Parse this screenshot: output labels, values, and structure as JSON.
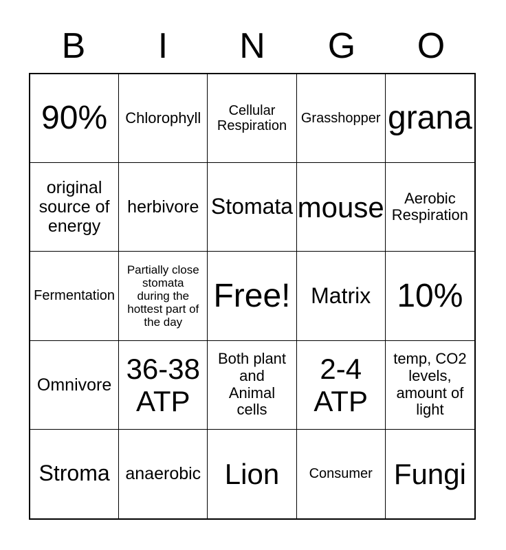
{
  "header": {
    "letters": [
      "B",
      "I",
      "N",
      "G",
      "O"
    ]
  },
  "board": {
    "rows": [
      {
        "cells": [
          {
            "text": "90%",
            "tier": "xl"
          },
          {
            "text": "Chlorophyll",
            "tier": "sm"
          },
          {
            "text": "Cellular\nRespiration",
            "tier": "xs"
          },
          {
            "text": "Grasshopper",
            "tier": "xs"
          },
          {
            "text": "grana",
            "tier": "xl"
          }
        ]
      },
      {
        "cells": [
          {
            "text": "original\nsource of\nenergy",
            "tier": "base"
          },
          {
            "text": "herbivore",
            "tier": "base"
          },
          {
            "text": "Stomata",
            "tier": "md"
          },
          {
            "text": "mouse",
            "tier": "lg"
          },
          {
            "text": "Aerobic\nRespiration",
            "tier": "sm"
          }
        ]
      },
      {
        "cells": [
          {
            "text": "Fermentation",
            "tier": "xs"
          },
          {
            "text": "Partially close\nstomata\nduring the\nhottest part of\nthe day",
            "tier": "xxs"
          },
          {
            "text": "Free!",
            "tier": "xl"
          },
          {
            "text": "Matrix",
            "tier": "md"
          },
          {
            "text": "10%",
            "tier": "xl"
          }
        ]
      },
      {
        "cells": [
          {
            "text": "Omnivore",
            "tier": "base"
          },
          {
            "text": "36-38\nATP",
            "tier": "lg"
          },
          {
            "text": "Both plant\nand\nAnimal\ncells",
            "tier": "sm"
          },
          {
            "text": "2-4\nATP",
            "tier": "lg"
          },
          {
            "text": "temp, CO2\nlevels,\namount of\nlight",
            "tier": "sm"
          }
        ]
      },
      {
        "cells": [
          {
            "text": "Stroma",
            "tier": "md"
          },
          {
            "text": "anaerobic",
            "tier": "base"
          },
          {
            "text": "Lion",
            "tier": "lg"
          },
          {
            "text": "Consumer",
            "tier": "xs"
          },
          {
            "text": "Fungi",
            "tier": "lg"
          }
        ]
      }
    ]
  },
  "colors": {
    "background": "#ffffff",
    "text": "#000000",
    "grid_border": "#000000"
  }
}
